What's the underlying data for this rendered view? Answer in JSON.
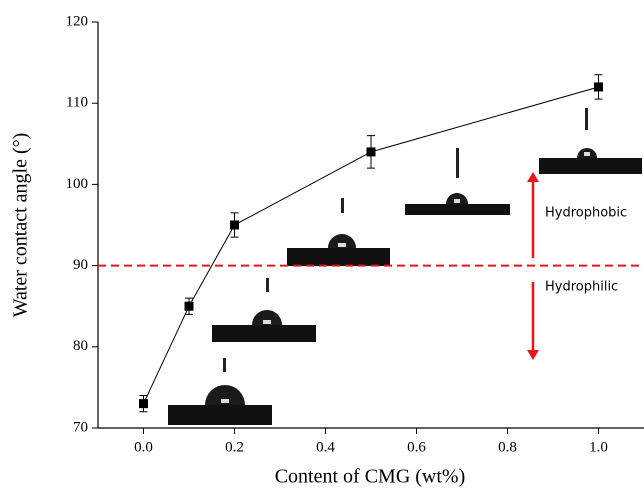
{
  "chart_data": {
    "type": "line",
    "x_label": "Content of CMG (wt%)",
    "y_label": "Water contact angle (°)",
    "x": [
      0.0,
      0.1,
      0.2,
      0.5,
      1.0
    ],
    "series": [
      {
        "color": "#000000",
        "values": [
          73,
          85,
          95,
          104,
          112
        ],
        "errors": [
          1,
          1,
          1.5,
          2,
          1.5
        ]
      }
    ],
    "xlim": [
      -0.1,
      1.1
    ],
    "ylim": [
      70,
      120
    ],
    "xticks": [
      {
        "value": 0,
        "label": "0.0"
      },
      {
        "value": 0.2,
        "label": "0.2"
      },
      {
        "value": 0.4,
        "label": "0.4"
      },
      {
        "value": 0.6,
        "label": "0.6"
      },
      {
        "value": 0.8,
        "label": "0.8"
      },
      {
        "value": 1,
        "label": "1.0"
      }
    ],
    "yticks": [
      70,
      80,
      90,
      100,
      110,
      120
    ],
    "reference_line": {
      "value": 90,
      "color": "#e8151b"
    },
    "annotations": [
      "Hydrophobic",
      "Hydrophilic"
    ]
  }
}
